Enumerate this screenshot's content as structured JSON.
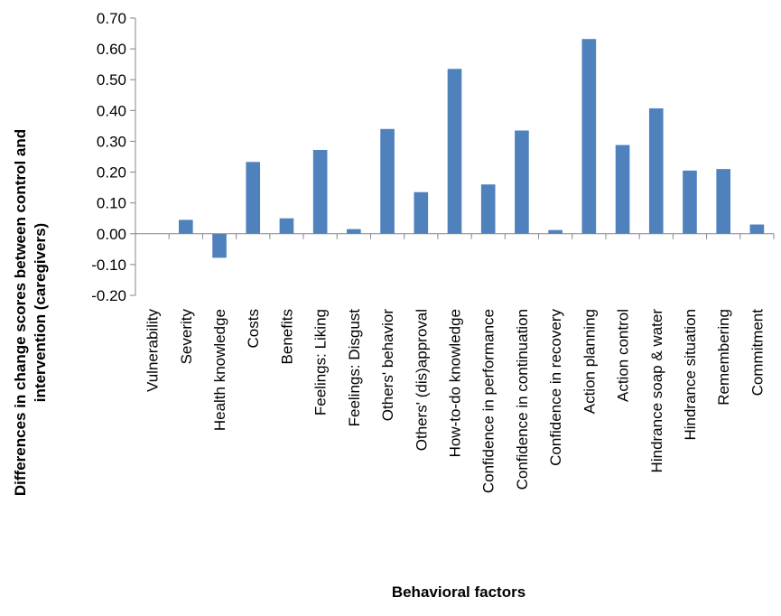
{
  "chart_data": {
    "type": "bar",
    "title": "",
    "xlabel": "Behavioral factors",
    "ylabel": "Differences in change scores between control and intervention (caregivers)",
    "ylabel_lines": [
      "Differences in change scores between control and",
      "intervention (caregivers)"
    ],
    "ylim": [
      -0.2,
      0.7
    ],
    "yticks": [
      -0.2,
      -0.1,
      0.0,
      0.1,
      0.2,
      0.3,
      0.4,
      0.5,
      0.6,
      0.7
    ],
    "ytick_labels": [
      "-0.20",
      "-0.10",
      "0.00",
      "0.10",
      "0.20",
      "0.30",
      "0.40",
      "0.50",
      "0.60",
      "0.70"
    ],
    "grid": false,
    "legend": "none",
    "bar_color": "#4f81bd",
    "categories": [
      "Vulnerability",
      "Severity",
      "Health knowledge",
      "Costs",
      "Benefits",
      "Feelings: Liking",
      "Feelings: Disgust",
      "Others' behavior",
      "Others' (dis)approval",
      "How-to-do knowledge",
      "Confidence in performance",
      "Confidence in continuation",
      "Confidence in recovery",
      "Action planning",
      "Action control",
      "Hindrance soap & water",
      "Hindrance situation",
      "Remembering",
      "Commitment"
    ],
    "values": [
      0.0,
      0.045,
      -0.078,
      0.233,
      0.05,
      0.272,
      0.015,
      0.34,
      0.135,
      0.535,
      0.16,
      0.335,
      0.012,
      0.632,
      0.288,
      0.407,
      0.205,
      0.21,
      0.03
    ]
  }
}
